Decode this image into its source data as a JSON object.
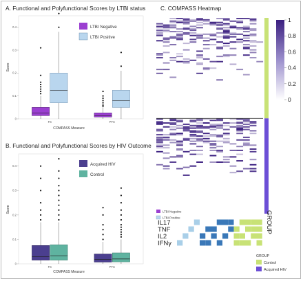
{
  "panel_a": {
    "title": "A.  Functional and Polyfunctional Scores by LTBI status",
    "ylabel": "Score",
    "xlabel": "COMPASS Measure",
    "legend": [
      "LTBI Negative",
      "LTBI Positive"
    ]
  },
  "panel_b": {
    "title": "B.  Functional and Polyfunctional Scores by HIV Outcome",
    "ylabel": "Score",
    "xlabel": "COMPASS Measure",
    "legend": [
      "Acquired HIV",
      "Control"
    ]
  },
  "panel_c": {
    "title": "C.  COMPASS Heatmap",
    "colorbar_ticks": [
      "1",
      "0.8",
      "0.6",
      "0.4",
      "0.2",
      "0"
    ],
    "mini_legend": [
      "LTBI Negative",
      "LTBI Positive"
    ],
    "genes": [
      "IL17",
      "TNF",
      "IL2",
      "IFNγ"
    ],
    "group_label": "GROUP",
    "group_legend_title": "GROUP",
    "group_legend": [
      "Control",
      "Acquired HIV"
    ]
  },
  "colors": {
    "ltbi_negative": "#9b3fd1",
    "ltbi_positive": "#b9d6ee",
    "acquired_hiv": "#4b3f8f",
    "control": "#5fb3a0",
    "control_group": "#c8e276",
    "hiv_group": "#6c4fd6",
    "heat_high": "#3b1f80",
    "combo_blue": "#3a78b8",
    "combo_light": "#a9cfe8",
    "combo_green": "#c8e276"
  },
  "chart_data": [
    {
      "type": "box",
      "title": "A.  Functional and Polyfunctional Scores by LTBI status",
      "xlabel": "COMPASS Measure",
      "ylabel": "Score",
      "categories": [
        "FS",
        "PFS"
      ],
      "ylim": [
        0,
        0.45
      ],
      "yticks": [
        0,
        0.1,
        0.2,
        0.3,
        0.4
      ],
      "series": [
        {
          "name": "LTBI Negative",
          "boxes": [
            {
              "q1": 0.014,
              "median": 0.025,
              "q3": 0.05,
              "lo": 0.0,
              "hi": 0.1,
              "outliers": [
                0.11,
                0.12,
                0.13,
                0.14,
                0.15,
                0.16,
                0.19,
                0.31
              ]
            },
            {
              "q1": 0.008,
              "median": 0.014,
              "q3": 0.026,
              "lo": 0.0,
              "hi": 0.05,
              "outliers": [
                0.055,
                0.06,
                0.07,
                0.08,
                0.09,
                0.1,
                0.12
              ]
            }
          ]
        },
        {
          "name": "LTBI Positive",
          "boxes": [
            {
              "q1": 0.07,
              "median": 0.125,
              "q3": 0.2,
              "lo": 0.0,
              "hi": 0.38,
              "outliers": [
                0.4,
                0.46
              ]
            },
            {
              "q1": 0.05,
              "median": 0.08,
              "q3": 0.125,
              "lo": 0.0,
              "hi": 0.21,
              "outliers": [
                0.23,
                0.29
              ]
            }
          ]
        }
      ]
    },
    {
      "type": "box",
      "title": "B.  Functional and Polyfunctional Scores by HIV Outcome",
      "xlabel": "COMPASS Measure",
      "ylabel": "Score",
      "categories": [
        "FS",
        "PFS"
      ],
      "ylim": [
        0,
        0.45
      ],
      "yticks": [
        0,
        0.1,
        0.2,
        0.3,
        0.4
      ],
      "series": [
        {
          "name": "Acquired HIV",
          "boxes": [
            {
              "q1": 0.015,
              "median": 0.03,
              "q3": 0.075,
              "lo": 0.0,
              "hi": 0.17,
              "outliers": [
                0.18,
                0.2,
                0.22,
                0.25,
                0.3,
                0.35,
                0.4
              ]
            },
            {
              "q1": 0.007,
              "median": 0.018,
              "q3": 0.04,
              "lo": 0.0,
              "hi": 0.09,
              "outliers": [
                0.1,
                0.12,
                0.14,
                0.16,
                0.2,
                0.23
              ]
            }
          ]
        },
        {
          "name": "Control",
          "boxes": [
            {
              "q1": 0.015,
              "median": 0.032,
              "q3": 0.078,
              "lo": 0.0,
              "hi": 0.17,
              "outliers": [
                0.18,
                0.2,
                0.22,
                0.24,
                0.26,
                0.28,
                0.3,
                0.32,
                0.35,
                0.38,
                0.43
              ]
            },
            {
              "q1": 0.008,
              "median": 0.02,
              "q3": 0.045,
              "lo": 0.0,
              "hi": 0.1,
              "outliers": [
                0.11,
                0.12,
                0.13,
                0.14,
                0.15,
                0.16,
                0.18,
                0.2,
                0.22,
                0.25,
                0.28,
                0.31
              ]
            }
          ]
        }
      ]
    },
    {
      "type": "heatmap",
      "title": "C.  COMPASS Heatmap",
      "color_range": [
        0,
        1
      ],
      "colorbar_ticks": [
        1,
        0.8,
        0.6,
        0.4,
        0.2,
        0
      ],
      "rows": 150,
      "columns": 16,
      "groups": [
        {
          "name": "Control",
          "share": 0.51
        },
        {
          "name": "Acquired HIV",
          "share": 0.49
        }
      ],
      "genes": [
        "IL17",
        "TNF",
        "IL2",
        "IFNγ"
      ],
      "cytokine_combinations": [
        {
          "IL17": 0,
          "TNF": 0,
          "IL2": 0,
          "IFNγ": 1,
          "degree": 1
        },
        {
          "IL17": 0,
          "TNF": 0,
          "IL2": 1,
          "IFNγ": 0,
          "degree": 1
        },
        {
          "IL17": 0,
          "TNF": 1,
          "IL2": 0,
          "IFNγ": 0,
          "degree": 1
        },
        {
          "IL17": 1,
          "TNF": 0,
          "IL2": 0,
          "IFNγ": 0,
          "degree": 1
        },
        {
          "IL17": 0,
          "TNF": 0,
          "IL2": 1,
          "IFNγ": 1,
          "degree": 2
        },
        {
          "IL17": 0,
          "TNF": 1,
          "IL2": 0,
          "IFNγ": 1,
          "degree": 2
        },
        {
          "IL17": 0,
          "TNF": 1,
          "IL2": 1,
          "IFNγ": 0,
          "degree": 2
        },
        {
          "IL17": 1,
          "TNF": 0,
          "IL2": 0,
          "IFNγ": 1,
          "degree": 2
        },
        {
          "IL17": 1,
          "TNF": 0,
          "IL2": 1,
          "IFNγ": 0,
          "degree": 2
        },
        {
          "IL17": 1,
          "TNF": 1,
          "IL2": 0,
          "IFNγ": 0,
          "degree": 2
        },
        {
          "IL17": 0,
          "TNF": 1,
          "IL2": 1,
          "IFNγ": 1,
          "degree": 3
        },
        {
          "IL17": 1,
          "TNF": 0,
          "IL2": 1,
          "IFNγ": 1,
          "degree": 3
        },
        {
          "IL17": 1,
          "TNF": 1,
          "IL2": 0,
          "IFNγ": 1,
          "degree": 3
        },
        {
          "IL17": 1,
          "TNF": 1,
          "IL2": 1,
          "IFNγ": 0,
          "degree": 3
        },
        {
          "IL17": 1,
          "TNF": 1,
          "IL2": 1,
          "IFNγ": 1,
          "degree": 4
        },
        {
          "IL17": 0,
          "TNF": 0,
          "IL2": 0,
          "IFNγ": 0,
          "degree": 0
        }
      ]
    }
  ]
}
